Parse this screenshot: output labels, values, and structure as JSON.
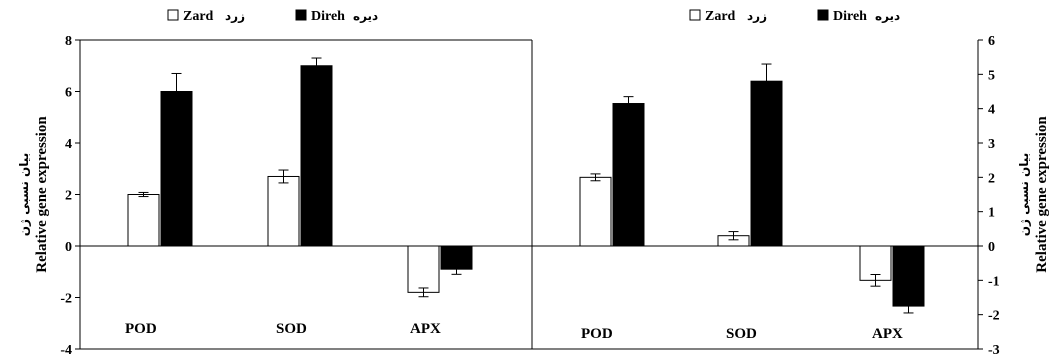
{
  "chart_data": [
    {
      "type": "bar",
      "panel": "left",
      "categories": [
        "POD",
        "SOD",
        "APX"
      ],
      "series": [
        {
          "name": "Zard",
          "name_fa": "زرد",
          "color": "#ffffff",
          "values": [
            2.0,
            2.7,
            -1.8
          ],
          "errors": [
            0.08,
            0.25,
            0.17
          ]
        },
        {
          "name": "Direh",
          "name_fa": "دیره",
          "color": "#000000",
          "values": [
            6.0,
            7.0,
            -0.9
          ],
          "errors": [
            0.7,
            0.3,
            0.2
          ]
        }
      ],
      "ylabel": "Relative  gene expression",
      "ylabel_fa": "بیان نسبی ژن",
      "ylim": [
        -4,
        8
      ],
      "yticks": [
        -4,
        -2,
        0,
        2,
        4,
        6,
        8
      ],
      "ytick_labels": [
        "-4",
        "-2",
        "0",
        "2",
        "4",
        "6",
        "8"
      ],
      "y_axis_side": "left",
      "legend_position": "top"
    },
    {
      "type": "bar",
      "panel": "right",
      "categories": [
        "POD",
        "SOD",
        "APX"
      ],
      "series": [
        {
          "name": "Zard",
          "name_fa": "زرد",
          "color": "#ffffff",
          "values": [
            2.0,
            0.3,
            -1.0
          ],
          "errors": [
            0.1,
            0.12,
            0.17
          ]
        },
        {
          "name": "Direh",
          "name_fa": "دیره",
          "color": "#000000",
          "values": [
            4.15,
            4.8,
            -1.75
          ],
          "errors": [
            0.2,
            0.5,
            0.2
          ]
        }
      ],
      "ylabel": "Relative  gene expression",
      "ylabel_fa": "بیان نسبی ژن",
      "ylim": [
        -3,
        6
      ],
      "yticks": [
        -3,
        -2,
        -1,
        0,
        1,
        2,
        3,
        4,
        5,
        6
      ],
      "ytick_labels": [
        "-3",
        "-2",
        "-1",
        "0",
        "1",
        "2",
        "3",
        "4",
        "5",
        "6"
      ],
      "y_axis_side": "right",
      "legend_position": "top"
    }
  ]
}
